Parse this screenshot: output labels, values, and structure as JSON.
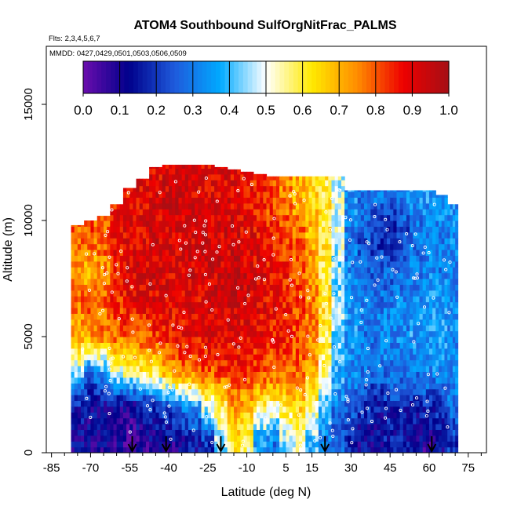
{
  "chart_data": {
    "type": "heatmap",
    "title": "ATOM4 Southbound SulfOrgNitFrac_PALMS",
    "subtitle_flights": "Flts: 2,3,4,5,6,7",
    "subtitle_dates": "MMDD: 0427,0429,0501,0503,0506,0509",
    "xlabel": "Latitude (deg N)",
    "ylabel": "Altitude (m)",
    "xlim": [
      -87,
      82
    ],
    "ylim": [
      0,
      17500
    ],
    "x_ticks": [
      -85,
      -70,
      -55,
      -40,
      -25,
      -10,
      5,
      15,
      30,
      45,
      60,
      75
    ],
    "x_minor_ticks": [
      -80,
      -75,
      -65,
      -60,
      -50,
      -45,
      -35,
      -30,
      -20,
      -15,
      -5,
      0,
      10,
      20,
      25,
      35,
      40,
      50,
      55,
      65,
      70,
      80
    ],
    "y_ticks": [
      0,
      5000,
      10000,
      15000
    ],
    "colorbar": {
      "ticks": [
        "0.0",
        "0.1",
        "0.2",
        "0.3",
        "0.4",
        "0.5",
        "0.6",
        "0.7",
        "0.8",
        "0.9",
        "1.0"
      ],
      "range": [
        0,
        1
      ],
      "color_stops": [
        "#6a0dad",
        "#00008b",
        "#1e5adc",
        "#00aaff",
        "#ffffff",
        "#ffea00",
        "#ff8c00",
        "#ee0000",
        "#a50f15"
      ]
    },
    "arrow_latitudes": [
      -54,
      -41,
      -20,
      20,
      61
    ],
    "columns": [
      {
        "lat": -75,
        "profile": [
          0.12,
          0.15,
          0.45,
          0.7,
          0.78,
          0.72,
          0.8,
          0.7
        ],
        "top": 9800
      },
      {
        "lat": -70,
        "profile": [
          0.1,
          0.12,
          0.3,
          0.72,
          0.8,
          0.68,
          0.82,
          0.7
        ],
        "top": 10000
      },
      {
        "lat": -65,
        "profile": [
          0.1,
          0.12,
          0.35,
          0.75,
          0.8,
          0.75,
          0.8,
          0.75
        ],
        "top": 10200
      },
      {
        "lat": -60,
        "profile": [
          0.08,
          0.12,
          0.5,
          0.78,
          0.85,
          0.85,
          0.9,
          0.85
        ],
        "top": 10700
      },
      {
        "lat": -55,
        "profile": [
          0.05,
          0.1,
          0.55,
          0.8,
          0.88,
          0.9,
          0.9,
          0.88
        ],
        "top": 11400
      },
      {
        "lat": -50,
        "profile": [
          0.08,
          0.15,
          0.6,
          0.8,
          0.9,
          0.92,
          0.9,
          0.9
        ],
        "top": 11800
      },
      {
        "lat": -45,
        "profile": [
          0.1,
          0.2,
          0.6,
          0.82,
          0.9,
          0.92,
          0.92,
          0.9
        ],
        "top": 12300
      },
      {
        "lat": -40,
        "profile": [
          0.1,
          0.25,
          0.7,
          0.85,
          0.9,
          0.9,
          0.92,
          0.92
        ],
        "top": 12400
      },
      {
        "lat": -35,
        "profile": [
          0.12,
          0.3,
          0.75,
          0.88,
          0.9,
          0.92,
          0.92,
          0.92
        ],
        "top": 12400
      },
      {
        "lat": -30,
        "profile": [
          0.15,
          0.35,
          0.78,
          0.88,
          0.9,
          0.92,
          0.92,
          0.9
        ],
        "top": 12400
      },
      {
        "lat": -25,
        "profile": [
          0.2,
          0.5,
          0.8,
          0.9,
          0.92,
          0.92,
          0.92,
          0.9
        ],
        "top": 12400
      },
      {
        "lat": -20,
        "profile": [
          0.45,
          0.6,
          0.82,
          0.9,
          0.93,
          0.92,
          0.92,
          0.9
        ],
        "top": 12300
      },
      {
        "lat": -15,
        "profile": [
          0.6,
          0.72,
          0.85,
          0.9,
          0.93,
          0.93,
          0.92,
          0.9
        ],
        "top": 12200
      },
      {
        "lat": -10,
        "profile": [
          0.55,
          0.7,
          0.85,
          0.9,
          0.92,
          0.92,
          0.9,
          0.88
        ],
        "top": 12100
      },
      {
        "lat": -5,
        "profile": [
          0.35,
          0.6,
          0.82,
          0.88,
          0.9,
          0.9,
          0.88,
          0.85
        ],
        "top": 12000
      },
      {
        "lat": 0,
        "profile": [
          0.3,
          0.55,
          0.8,
          0.86,
          0.88,
          0.88,
          0.86,
          0.8
        ],
        "top": 11900
      },
      {
        "lat": 5,
        "profile": [
          0.45,
          0.62,
          0.8,
          0.85,
          0.86,
          0.85,
          0.82,
          0.75
        ],
        "top": 11900
      },
      {
        "lat": 10,
        "profile": [
          0.5,
          0.65,
          0.78,
          0.82,
          0.82,
          0.8,
          0.78,
          0.7
        ],
        "top": 11900
      },
      {
        "lat": 15,
        "profile": [
          0.4,
          0.55,
          0.7,
          0.75,
          0.75,
          0.72,
          0.7,
          0.65
        ],
        "top": 11900
      },
      {
        "lat": 20,
        "profile": [
          0.3,
          0.4,
          0.55,
          0.6,
          0.62,
          0.6,
          0.62,
          0.6
        ],
        "top": 11900
      },
      {
        "lat": 25,
        "profile": [
          0.25,
          0.3,
          0.38,
          0.42,
          0.45,
          0.45,
          0.5,
          0.48
        ],
        "top": 11900
      },
      {
        "lat": 30,
        "profile": [
          0.18,
          0.25,
          0.32,
          0.35,
          0.35,
          0.32,
          0.3,
          0.35
        ],
        "top": 11300
      },
      {
        "lat": 35,
        "profile": [
          0.12,
          0.2,
          0.3,
          0.3,
          0.32,
          0.28,
          0.22,
          0.3
        ],
        "top": 11300
      },
      {
        "lat": 40,
        "profile": [
          0.1,
          0.15,
          0.28,
          0.3,
          0.3,
          0.25,
          0.18,
          0.3
        ],
        "top": 11300
      },
      {
        "lat": 45,
        "profile": [
          0.15,
          0.18,
          0.3,
          0.32,
          0.3,
          0.25,
          0.15,
          0.3
        ],
        "top": 11300
      },
      {
        "lat": 50,
        "profile": [
          0.15,
          0.18,
          0.3,
          0.32,
          0.32,
          0.28,
          0.2,
          0.32
        ],
        "top": 11300
      },
      {
        "lat": 55,
        "profile": [
          0.12,
          0.15,
          0.3,
          0.35,
          0.33,
          0.3,
          0.28,
          0.35
        ],
        "top": 11300
      },
      {
        "lat": 60,
        "profile": [
          0.08,
          0.18,
          0.32,
          0.35,
          0.35,
          0.32,
          0.3,
          0.35
        ],
        "top": 11300
      },
      {
        "lat": 65,
        "profile": [
          0.12,
          0.2,
          0.32,
          0.35,
          0.35,
          0.3,
          0.3,
          0.35
        ],
        "top": 11100
      },
      {
        "lat": 69,
        "profile": [
          0.2,
          0.28,
          0.32,
          0.33,
          0.33,
          0.32,
          0.32,
          0.35
        ],
        "top": 10700
      }
    ],
    "profile_altitudes": [
      500,
      2000,
      3500,
      5000,
      6500,
      8000,
      9500,
      11000
    ]
  }
}
